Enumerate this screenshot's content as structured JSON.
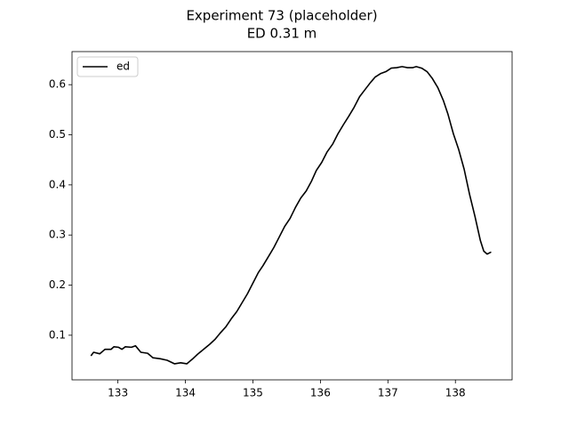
{
  "chart_data": {
    "type": "line",
    "title": "Experiment 73 (placeholder)",
    "subtitle": "ED 0.31 m",
    "x": [
      132.6,
      132.64,
      132.73,
      132.81,
      132.9,
      132.94,
      133.01,
      133.06,
      133.11,
      133.2,
      133.26,
      133.34,
      133.44,
      133.52,
      133.63,
      133.73,
      133.84,
      133.93,
      134.02,
      134.1,
      134.18,
      134.26,
      134.36,
      134.44,
      134.52,
      134.6,
      134.68,
      134.76,
      134.84,
      134.92,
      135.0,
      135.08,
      135.15,
      135.23,
      135.31,
      135.39,
      135.47,
      135.55,
      135.63,
      135.71,
      135.79,
      135.87,
      135.94,
      136.02,
      136.1,
      136.18,
      136.26,
      136.34,
      136.42,
      136.5,
      136.58,
      136.66,
      136.74,
      136.81,
      136.89,
      136.97,
      137.05,
      137.13,
      137.21,
      137.29,
      137.37,
      137.42,
      137.5,
      137.58,
      137.66,
      137.74,
      137.82,
      137.89,
      137.97,
      138.05,
      138.13,
      138.21,
      138.29,
      138.37,
      138.42,
      138.47,
      138.53
    ],
    "series": [
      {
        "name": "ed",
        "color": "#000000",
        "values": [
          0.059,
          0.066,
          0.063,
          0.072,
          0.072,
          0.077,
          0.076,
          0.072,
          0.077,
          0.076,
          0.079,
          0.066,
          0.064,
          0.055,
          0.053,
          0.05,
          0.043,
          0.045,
          0.043,
          0.052,
          0.062,
          0.071,
          0.082,
          0.092,
          0.105,
          0.117,
          0.133,
          0.147,
          0.165,
          0.183,
          0.204,
          0.225,
          0.239,
          0.257,
          0.275,
          0.296,
          0.317,
          0.333,
          0.355,
          0.374,
          0.388,
          0.408,
          0.429,
          0.445,
          0.466,
          0.481,
          0.502,
          0.52,
          0.537,
          0.555,
          0.576,
          0.59,
          0.604,
          0.615,
          0.622,
          0.626,
          0.633,
          0.634,
          0.636,
          0.634,
          0.634,
          0.636,
          0.633,
          0.626,
          0.612,
          0.594,
          0.569,
          0.541,
          0.502,
          0.47,
          0.431,
          0.381,
          0.337,
          0.289,
          0.268,
          0.262,
          0.266
        ]
      }
    ],
    "xlim": [
      132.32,
      138.84
    ],
    "ylim": [
      0.011,
      0.666
    ],
    "xticks": [
      133,
      134,
      135,
      136,
      137,
      138
    ],
    "yticks": [
      0.1,
      0.2,
      0.3,
      0.4,
      0.5,
      0.6
    ],
    "legend": "upper left",
    "grid": false
  }
}
